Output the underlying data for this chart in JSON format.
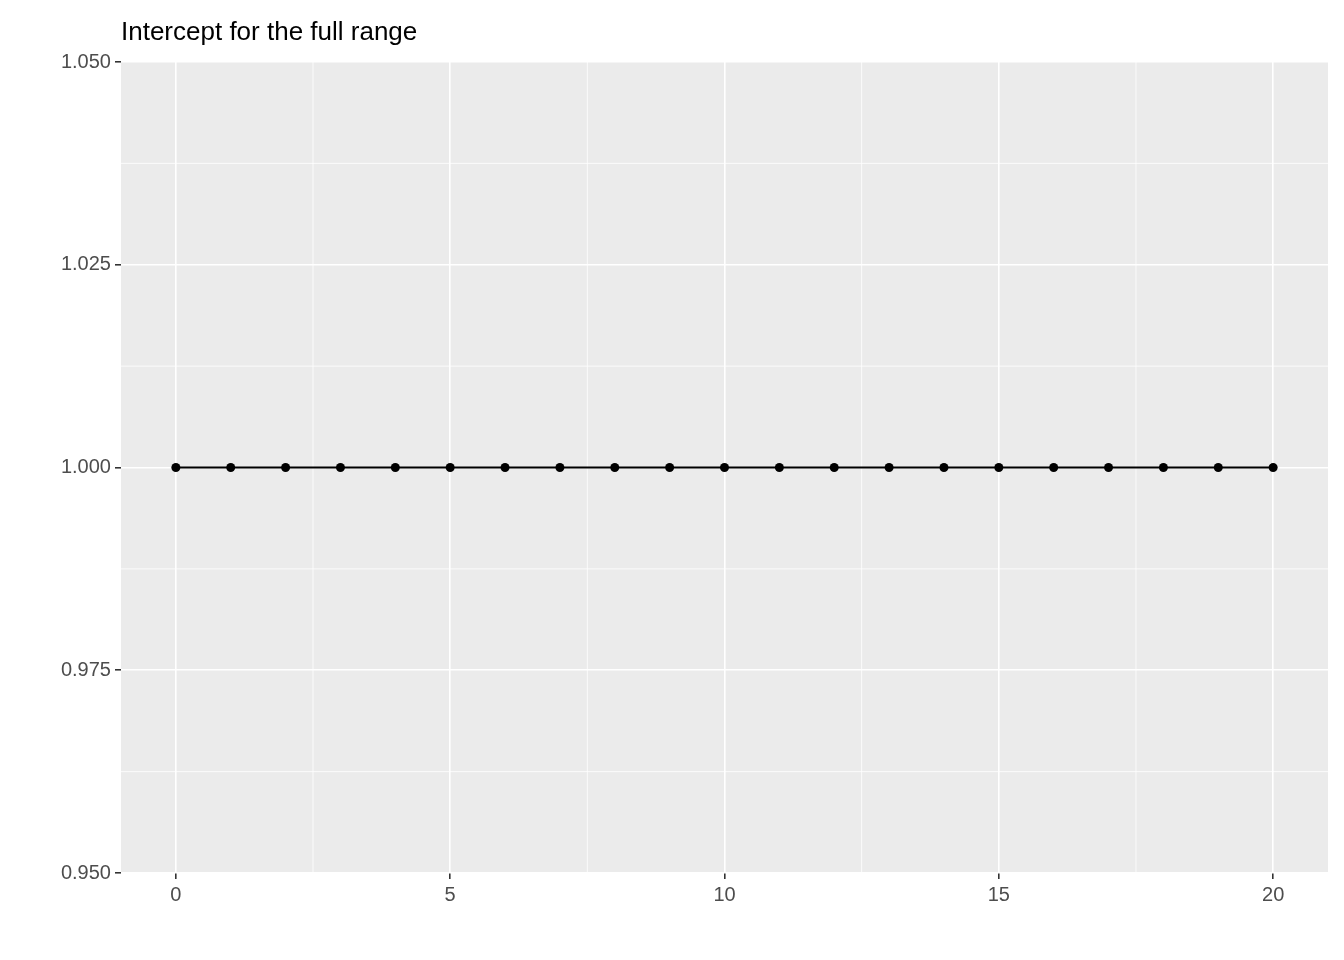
{
  "chart_data": {
    "type": "line",
    "title": "Intercept for the full range",
    "x": [
      0,
      1,
      2,
      3,
      4,
      5,
      6,
      7,
      8,
      9,
      10,
      11,
      12,
      13,
      14,
      15,
      16,
      17,
      18,
      19,
      20
    ],
    "series": [
      {
        "color": "#000000",
        "values": [
          1,
          1,
          1,
          1,
          1,
          1,
          1,
          1,
          1,
          1,
          1,
          1,
          1,
          1,
          1,
          1,
          1,
          1,
          1,
          1,
          1
        ]
      }
    ],
    "xlim": [
      -1,
      21
    ],
    "xticks": [
      0,
      5,
      10,
      15,
      20
    ],
    "ylim": [
      0.95,
      1.05
    ],
    "yticks": [
      {
        "value": 0.95,
        "label": "0.950"
      },
      {
        "value": 0.975,
        "label": "0.975"
      },
      {
        "value": 1,
        "label": "1.000"
      },
      {
        "value": 1.025,
        "label": "1.025"
      },
      {
        "value": 1.05,
        "label": "1.050"
      }
    ],
    "grid": true,
    "legend": false,
    "marker": "circle",
    "line_style": "solid"
  }
}
